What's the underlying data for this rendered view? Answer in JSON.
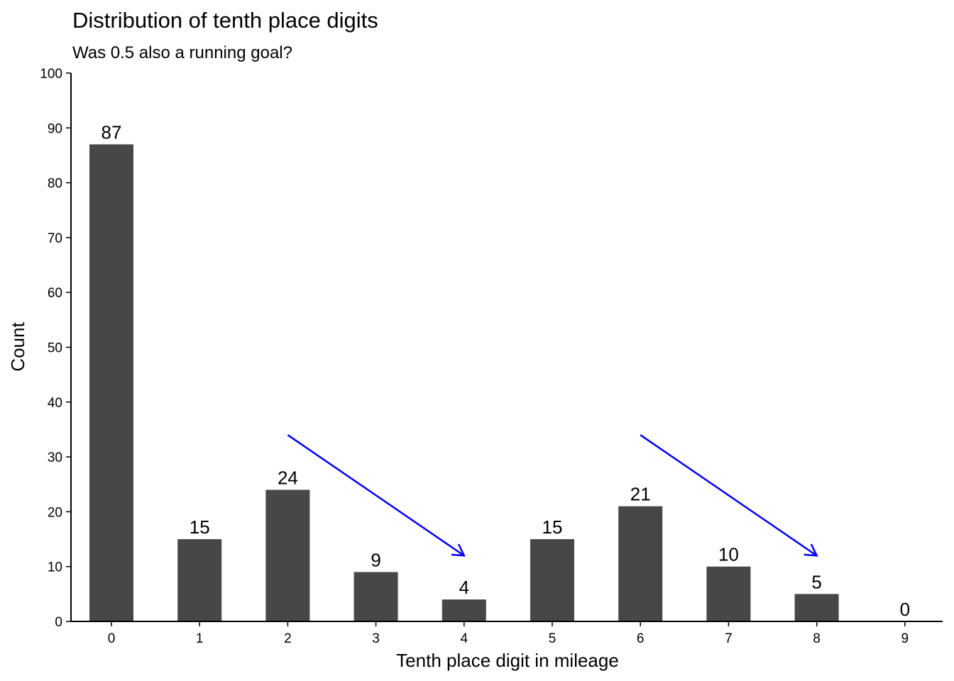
{
  "chart_data": {
    "type": "bar",
    "title": "Distribution of tenth place digits",
    "subtitle": "Was 0.5 also a running goal?",
    "xlabel": "Tenth place digit in mileage",
    "ylabel": "Count",
    "categories": [
      "0",
      "1",
      "2",
      "3",
      "4",
      "5",
      "6",
      "7",
      "8",
      "9"
    ],
    "values": [
      87,
      15,
      24,
      9,
      4,
      15,
      21,
      10,
      5,
      0
    ],
    "ylim": [
      0,
      100
    ],
    "yticks": [
      0,
      10,
      20,
      30,
      40,
      50,
      60,
      70,
      80,
      90,
      100
    ],
    "grid": false,
    "bar_color": "#474747",
    "annotations": [
      {
        "type": "arrow",
        "from": [
          2,
          34
        ],
        "to": [
          4,
          12
        ],
        "color": "#0000ff"
      },
      {
        "type": "arrow",
        "from": [
          6,
          34
        ],
        "to": [
          8,
          12
        ],
        "color": "#0000ff"
      }
    ]
  }
}
